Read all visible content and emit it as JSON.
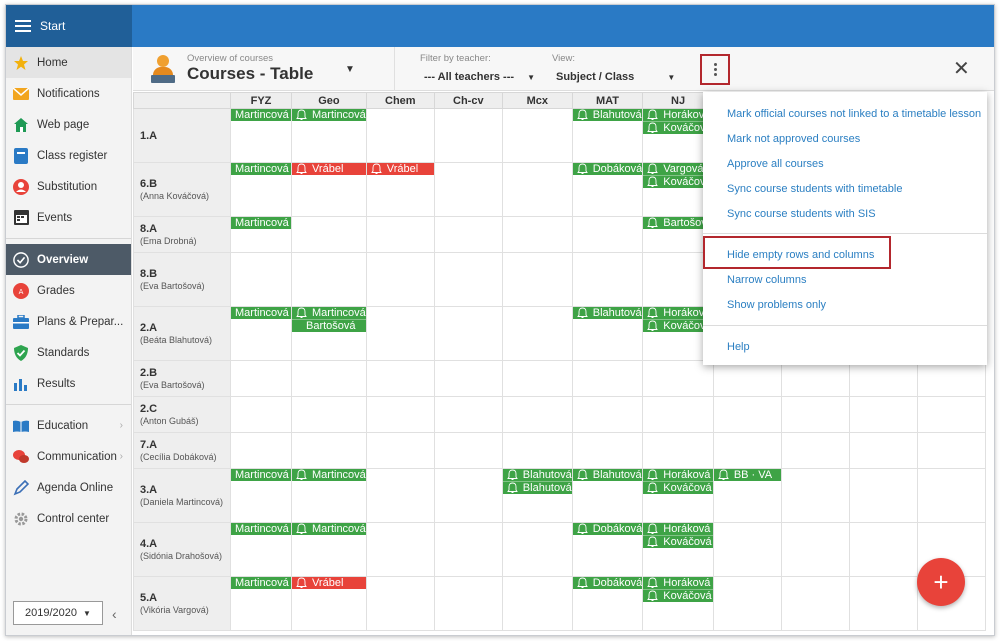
{
  "topbar": {
    "start_label": "Start"
  },
  "sidebar": {
    "items": [
      {
        "label": "Home",
        "icon": "star-icon"
      },
      {
        "label": "Notifications",
        "icon": "envelope-icon"
      },
      {
        "label": "Web page",
        "icon": "house-icon"
      },
      {
        "label": "Class register",
        "icon": "book-icon"
      },
      {
        "label": "Substitution",
        "icon": "person-icon"
      },
      {
        "label": "Events",
        "icon": "calendar-icon"
      },
      {
        "label": "Overview",
        "icon": "check-circle-icon"
      },
      {
        "label": "Grades",
        "icon": "grade-icon"
      },
      {
        "label": "Plans & Prepar...",
        "icon": "briefcase-icon"
      },
      {
        "label": "Standards",
        "icon": "shield-check-icon"
      },
      {
        "label": "Results",
        "icon": "bar-chart-icon"
      },
      {
        "label": "Education",
        "icon": "open-book-icon"
      },
      {
        "label": "Communication",
        "icon": "chat-icon"
      },
      {
        "label": "Agenda Online",
        "icon": "pen-icon"
      },
      {
        "label": "Control center",
        "icon": "gear-icon"
      }
    ],
    "year": "2019/2020"
  },
  "header": {
    "subtitle": "Overview of courses",
    "title": "Courses - Table",
    "filter_label": "Filter by teacher:",
    "filter_value": "--- All teachers ---",
    "view_label": "View:",
    "view_value": "Subject / Class"
  },
  "table": {
    "columns": [
      "FYZ",
      "Geo",
      "Chem",
      "Ch-cv",
      "Mcx",
      "MAT",
      "NJ"
    ],
    "rows": [
      {
        "class": "1.A",
        "teacher": ""
      },
      {
        "class": "6.B",
        "teacher": "(Anna Kováčová)"
      },
      {
        "class": "8.A",
        "teacher": "(Ema Drobná)"
      },
      {
        "class": "8.B",
        "teacher": "(Eva Bartošová)"
      },
      {
        "class": "2.A",
        "teacher": "(Beáta Blahutová)"
      },
      {
        "class": "2.B",
        "teacher": "(Eva Bartošová)"
      },
      {
        "class": "2.C",
        "teacher": "(Anton Gubáš)"
      },
      {
        "class": "7.A",
        "teacher": "(Cecília Dobáková)"
      },
      {
        "class": "3.A",
        "teacher": "(Daniela Martincová)"
      },
      {
        "class": "4.A",
        "teacher": "(Sidónia Drahošová)"
      },
      {
        "class": "5.A",
        "teacher": "(Vikória Vargová)"
      }
    ],
    "names": {
      "martincova": "Martincová",
      "blahutova": "Blahutová",
      "horakova": "Horáková",
      "kovacova": "Kováčová",
      "vrabel": "Vrábel",
      "dobakova": "Dobáková",
      "vargova": "Vargová",
      "bartosova": "Bartošová",
      "bb_va": "BB · VA"
    }
  },
  "menu": {
    "items": [
      "Mark official courses not linked to a timetable lesson",
      "Mark not approved courses",
      "Approve all courses",
      "Sync course students with timetable",
      "Sync course students with SIS",
      "Hide empty rows and columns",
      "Narrow columns",
      "Show problems only",
      "Help"
    ]
  },
  "colors": {
    "green": "#3ea346",
    "red": "#e8433a",
    "accent": "#2a7ac5",
    "highlight": "#b3272d"
  }
}
